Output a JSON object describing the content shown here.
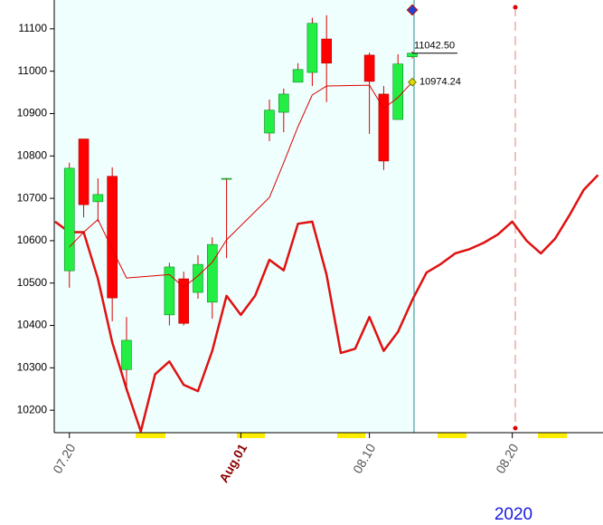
{
  "chart_data": {
    "type": "candlestick",
    "xlim": [
      -0.06,
      38.35
    ],
    "ylim": [
      10147,
      11168
    ],
    "xticks": [
      {
        "value": 1,
        "label": "07.20"
      },
      {
        "value": 13,
        "label": "Aug.01"
      },
      {
        "value": 22,
        "label": "08.10"
      },
      {
        "value": 32,
        "label": "08.20"
      }
    ],
    "yticks": [
      10200,
      10300,
      10400,
      10500,
      10600,
      10700,
      10800,
      10900,
      11000,
      11100
    ],
    "xlabel": "2020",
    "candles": {
      "up_color": "#22ee44",
      "down_color": "#ff0000",
      "wick_color": "#dd0000",
      "x": [
        1,
        2,
        3,
        4,
        5,
        8,
        9,
        10,
        11,
        12,
        15,
        16,
        17,
        18,
        19,
        22,
        23,
        24,
        25
      ],
      "open": [
        10529,
        10840,
        10692,
        10752,
        10296,
        10425,
        10510,
        10478,
        10455,
        10745,
        10854,
        10903,
        10974,
        10997,
        11076,
        11038,
        10946,
        10886,
        11034
      ],
      "high": [
        10784,
        10840,
        10747,
        10773,
        10420,
        10548,
        10527,
        10566,
        10608,
        10748,
        10933,
        10959,
        11019,
        11126,
        11132,
        11044,
        10965,
        11040,
        11047
      ],
      "low": [
        10489,
        10655,
        10645,
        10410,
        10245,
        10400,
        10400,
        10463,
        10416,
        10559,
        10835,
        10856,
        10974,
        10965,
        10927,
        10852,
        10767,
        10886,
        11030
      ],
      "close": [
        10771,
        10685,
        10709,
        10465,
        10365,
        10538,
        10405,
        10544,
        10591,
        10747,
        10908,
        10946,
        11004,
        11113,
        11019,
        10976,
        10788,
        11017,
        11042.5
      ]
    },
    "series": [
      {
        "color": "#dd0000",
        "width": 1,
        "x": [
          1,
          2,
          3,
          4,
          5,
          8,
          9,
          10,
          11,
          12,
          15,
          16,
          17,
          18,
          19,
          22,
          23,
          24,
          25
        ],
        "values": [
          10585,
          10620,
          10650,
          10580,
          10512,
          10520,
          10490,
          10517,
          10549,
          10602,
          10702,
          10784,
          10869,
          10944,
          10965,
          10967,
          10912,
          10938,
          10974.24
        ]
      },
      {
        "color": "#e01010",
        "width": 2.5,
        "x": [
          0,
          1,
          2,
          3,
          4,
          5,
          6,
          7,
          8,
          9,
          10,
          11,
          12,
          13,
          14,
          15,
          16,
          17,
          18,
          19,
          20,
          21,
          22,
          23,
          24,
          25,
          26,
          27,
          28,
          29,
          30,
          31,
          32,
          33,
          34,
          35,
          36,
          37,
          38
        ],
        "values": [
          10645,
          10620,
          10620,
          10510,
          10360,
          10250,
          10150,
          10285,
          10315,
          10260,
          10245,
          10340,
          10470,
          10425,
          10470,
          10555,
          10530,
          10640,
          10645,
          10520,
          10335,
          10345,
          10420,
          10340,
          10385,
          10460,
          10525,
          10545,
          10570,
          10580,
          10595,
          10615,
          10645,
          10600,
          10570,
          10605,
          10660,
          10720,
          10755
        ]
      }
    ],
    "annotations": [
      {
        "label": "11042.50",
        "x": 25,
        "value": 11042.5
      },
      {
        "label": "10974.24",
        "x": 25,
        "value": 10974.24
      }
    ]
  }
}
